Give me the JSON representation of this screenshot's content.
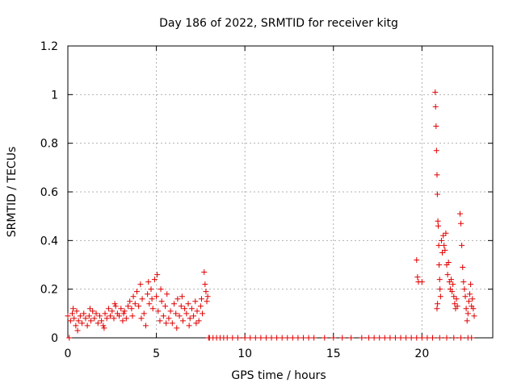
{
  "chart_data": {
    "type": "scatter",
    "title": "Day 186 of 2022, SRMTID for receiver kitg",
    "xlabel": "GPS time / hours",
    "ylabel": "SRMTID / TECUs",
    "xlim": [
      0,
      24
    ],
    "ylim": [
      0,
      1.2
    ],
    "x_ticks": [
      0,
      5,
      10,
      15,
      20
    ],
    "x_tick_labels": [
      "0",
      "5",
      "10",
      "15",
      "20"
    ],
    "y_ticks": [
      0,
      0.2,
      0.4,
      0.6,
      0.8,
      1.0,
      1.2
    ],
    "y_tick_labels": [
      "0",
      "0.2",
      "0.4",
      "0.6",
      "0.8",
      "1",
      "1.2"
    ],
    "grid": true,
    "marker": "+",
    "colors": {
      "series": "#e00000",
      "grid": "#b0b0b0",
      "axis": "#000000"
    },
    "series": [
      {
        "name": "SRMTID",
        "points": [
          [
            0.0,
            0.09
          ],
          [
            0.08,
            0.0
          ],
          [
            0.15,
            0.07
          ],
          [
            0.25,
            0.1
          ],
          [
            0.35,
            0.08
          ],
          [
            0.45,
            0.05
          ],
          [
            0.5,
            0.11
          ],
          [
            0.6,
            0.07
          ],
          [
            0.7,
            0.09
          ],
          [
            0.8,
            0.06
          ],
          [
            0.9,
            0.1
          ],
          [
            1.0,
            0.08
          ],
          [
            1.1,
            0.05
          ],
          [
            1.2,
            0.09
          ],
          [
            1.3,
            0.07
          ],
          [
            1.4,
            0.11
          ],
          [
            1.5,
            0.08
          ],
          [
            1.6,
            0.1
          ],
          [
            1.7,
            0.06
          ],
          [
            1.8,
            0.09
          ],
          [
            1.9,
            0.07
          ],
          [
            2.0,
            0.05
          ],
          [
            2.1,
            0.1
          ],
          [
            2.2,
            0.08
          ],
          [
            2.3,
            0.12
          ],
          [
            2.4,
            0.09
          ],
          [
            2.5,
            0.11
          ],
          [
            2.6,
            0.08
          ],
          [
            2.7,
            0.13
          ],
          [
            2.8,
            0.1
          ],
          [
            2.9,
            0.09
          ],
          [
            3.0,
            0.12
          ],
          [
            3.1,
            0.07
          ],
          [
            3.2,
            0.11
          ],
          [
            3.3,
            0.08
          ],
          [
            3.4,
            0.13
          ],
          [
            3.5,
            0.15
          ],
          [
            3.6,
            0.12
          ],
          [
            3.7,
            0.17
          ],
          [
            3.8,
            0.14
          ],
          [
            3.9,
            0.19
          ],
          [
            4.0,
            0.13
          ],
          [
            4.1,
            0.22
          ],
          [
            4.2,
            0.16
          ],
          [
            4.3,
            0.1
          ],
          [
            4.4,
            0.05
          ],
          [
            4.5,
            0.18
          ],
          [
            4.6,
            0.14
          ],
          [
            4.7,
            0.2
          ],
          [
            4.8,
            0.12
          ],
          [
            4.9,
            0.24
          ],
          [
            5.0,
            0.17
          ],
          [
            5.1,
            0.11
          ],
          [
            5.2,
            0.07
          ],
          [
            5.3,
            0.15
          ],
          [
            5.4,
            0.09
          ],
          [
            5.5,
            0.13
          ],
          [
            5.6,
            0.18
          ],
          [
            5.7,
            0.08
          ],
          [
            5.8,
            0.11
          ],
          [
            5.9,
            0.06
          ],
          [
            6.0,
            0.14
          ],
          [
            6.1,
            0.1
          ],
          [
            6.2,
            0.16
          ],
          [
            6.3,
            0.09
          ],
          [
            6.4,
            0.13
          ],
          [
            6.5,
            0.07
          ],
          [
            6.6,
            0.12
          ],
          [
            6.7,
            0.1
          ],
          [
            6.8,
            0.14
          ],
          [
            6.9,
            0.08
          ],
          [
            7.0,
            0.12
          ],
          [
            7.1,
            0.09
          ],
          [
            7.2,
            0.15
          ],
          [
            7.3,
            0.11
          ],
          [
            7.4,
            0.07
          ],
          [
            7.5,
            0.13
          ],
          [
            7.6,
            0.1
          ],
          [
            7.7,
            0.27
          ],
          [
            7.75,
            0.22
          ],
          [
            7.8,
            0.19
          ],
          [
            7.85,
            0.15
          ],
          [
            7.9,
            0.17
          ],
          [
            7.95,
            0.0
          ],
          [
            0.3,
            0.12
          ],
          [
            0.55,
            0.03
          ],
          [
            1.25,
            0.12
          ],
          [
            2.05,
            0.04
          ],
          [
            2.65,
            0.14
          ],
          [
            3.15,
            0.1
          ],
          [
            3.65,
            0.09
          ],
          [
            4.15,
            0.08
          ],
          [
            4.55,
            0.23
          ],
          [
            4.75,
            0.16
          ],
          [
            5.05,
            0.26
          ],
          [
            5.25,
            0.2
          ],
          [
            5.55,
            0.06
          ],
          [
            6.15,
            0.04
          ],
          [
            6.45,
            0.17
          ],
          [
            6.85,
            0.05
          ],
          [
            7.25,
            0.06
          ],
          [
            7.55,
            0.16
          ],
          [
            8.0,
            0.0
          ],
          [
            8.2,
            0.0
          ],
          [
            8.4,
            0.0
          ],
          [
            8.6,
            0.0
          ],
          [
            8.8,
            0.0
          ],
          [
            9.0,
            0.0
          ],
          [
            9.3,
            0.0
          ],
          [
            9.6,
            0.0
          ],
          [
            10.0,
            0.0
          ],
          [
            10.3,
            0.0
          ],
          [
            10.6,
            0.0
          ],
          [
            10.9,
            0.0
          ],
          [
            11.2,
            0.0
          ],
          [
            11.5,
            0.0
          ],
          [
            11.8,
            0.0
          ],
          [
            12.1,
            0.0
          ],
          [
            12.4,
            0.0
          ],
          [
            12.7,
            0.0
          ],
          [
            13.0,
            0.0
          ],
          [
            13.3,
            0.0
          ],
          [
            13.6,
            0.0
          ],
          [
            13.9,
            0.0
          ],
          [
            14.5,
            0.0
          ],
          [
            15.0,
            0.0
          ],
          [
            15.5,
            0.0
          ],
          [
            16.0,
            0.0
          ],
          [
            16.6,
            0.0
          ],
          [
            17.0,
            0.0
          ],
          [
            17.3,
            0.0
          ],
          [
            17.6,
            0.0
          ],
          [
            17.9,
            0.0
          ],
          [
            18.2,
            0.0
          ],
          [
            18.5,
            0.0
          ],
          [
            18.8,
            0.0
          ],
          [
            19.1,
            0.0
          ],
          [
            19.4,
            0.0
          ],
          [
            19.7,
            0.0
          ],
          [
            20.0,
            0.0
          ],
          [
            20.3,
            0.0
          ],
          [
            20.6,
            0.0
          ],
          [
            21.0,
            0.0
          ],
          [
            21.4,
            0.0
          ],
          [
            21.8,
            0.0
          ],
          [
            22.2,
            0.0
          ],
          [
            22.6,
            0.0
          ],
          [
            22.8,
            0.0
          ],
          [
            19.7,
            0.32
          ],
          [
            19.75,
            0.25
          ],
          [
            19.8,
            0.23
          ],
          [
            20.0,
            0.23
          ],
          [
            20.75,
            1.01
          ],
          [
            20.77,
            0.95
          ],
          [
            20.8,
            0.87
          ],
          [
            20.82,
            0.77
          ],
          [
            20.85,
            0.67
          ],
          [
            20.87,
            0.59
          ],
          [
            20.9,
            0.48
          ],
          [
            20.92,
            0.46
          ],
          [
            20.95,
            0.38
          ],
          [
            20.97,
            0.3
          ],
          [
            21.0,
            0.24
          ],
          [
            21.02,
            0.2
          ],
          [
            21.05,
            0.17
          ],
          [
            20.85,
            0.12
          ],
          [
            20.88,
            0.14
          ],
          [
            21.1,
            0.4
          ],
          [
            21.15,
            0.35
          ],
          [
            21.2,
            0.42
          ],
          [
            21.25,
            0.38
          ],
          [
            21.3,
            0.36
          ],
          [
            21.35,
            0.43
          ],
          [
            21.4,
            0.3
          ],
          [
            21.45,
            0.26
          ],
          [
            21.5,
            0.31
          ],
          [
            21.55,
            0.23
          ],
          [
            21.6,
            0.2
          ],
          [
            21.65,
            0.24
          ],
          [
            21.7,
            0.19
          ],
          [
            21.75,
            0.22
          ],
          [
            21.8,
            0.17
          ],
          [
            21.85,
            0.14
          ],
          [
            21.9,
            0.12
          ],
          [
            21.95,
            0.16
          ],
          [
            22.0,
            0.13
          ],
          [
            22.15,
            0.51
          ],
          [
            22.2,
            0.47
          ],
          [
            22.25,
            0.38
          ],
          [
            22.3,
            0.29
          ],
          [
            22.35,
            0.23
          ],
          [
            22.4,
            0.2
          ],
          [
            22.45,
            0.17
          ],
          [
            22.5,
            0.12
          ],
          [
            22.55,
            0.07
          ],
          [
            22.6,
            0.1
          ],
          [
            22.65,
            0.15
          ],
          [
            22.7,
            0.18
          ],
          [
            22.75,
            0.22
          ],
          [
            22.8,
            0.13
          ],
          [
            22.85,
            0.16
          ],
          [
            22.9,
            0.12
          ],
          [
            22.95,
            0.09
          ]
        ]
      }
    ]
  }
}
